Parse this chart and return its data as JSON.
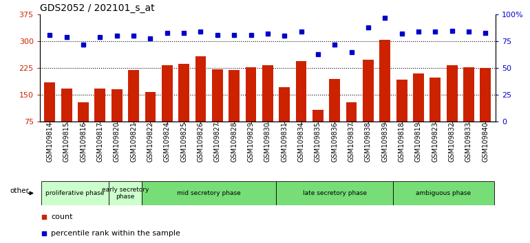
{
  "title": "GDS2052 / 202101_s_at",
  "samples": [
    "GSM109814",
    "GSM109815",
    "GSM109816",
    "GSM109817",
    "GSM109820",
    "GSM109821",
    "GSM109822",
    "GSM109824",
    "GSM109825",
    "GSM109826",
    "GSM109827",
    "GSM109828",
    "GSM109829",
    "GSM109830",
    "GSM109831",
    "GSM109834",
    "GSM109835",
    "GSM109836",
    "GSM109837",
    "GSM109838",
    "GSM109839",
    "GSM109818",
    "GSM109819",
    "GSM109823",
    "GSM109832",
    "GSM109833",
    "GSM109840"
  ],
  "counts": [
    185,
    168,
    128,
    168,
    165,
    220,
    158,
    232,
    237,
    258,
    222,
    220,
    228,
    232,
    172,
    245,
    108,
    195,
    128,
    248,
    305,
    192,
    210,
    198,
    232,
    228,
    225
  ],
  "percentiles": [
    81,
    79,
    72,
    79,
    80,
    80,
    78,
    83,
    83,
    84,
    81,
    81,
    81,
    82,
    80,
    84,
    63,
    72,
    65,
    88,
    97,
    82,
    84,
    84,
    85,
    84,
    83
  ],
  "ylim_left": [
    75,
    375
  ],
  "ylim_right": [
    0,
    100
  ],
  "yticks_left": [
    75,
    150,
    225,
    300,
    375
  ],
  "yticks_right": [
    0,
    25,
    50,
    75,
    100
  ],
  "bar_color": "#cc2200",
  "dot_color": "#0000cc",
  "background_color": "#ffffff",
  "phase_defs": [
    {
      "label": "proliferative phase",
      "start": 0,
      "end": 4,
      "color": "#ccffcc"
    },
    {
      "label": "early secretory\nphase",
      "start": 4,
      "end": 6,
      "color": "#ccffcc"
    },
    {
      "label": "mid secretory phase",
      "start": 6,
      "end": 14,
      "color": "#77dd77"
    },
    {
      "label": "late secretory phase",
      "start": 14,
      "end": 21,
      "color": "#77dd77"
    },
    {
      "label": "ambiguous phase",
      "start": 21,
      "end": 27,
      "color": "#77dd77"
    }
  ],
  "legend_count_label": "count",
  "legend_pct_label": "percentile rank within the sample",
  "title_fontsize": 10,
  "tick_label_fontsize": 7,
  "dot_markersize": 5
}
